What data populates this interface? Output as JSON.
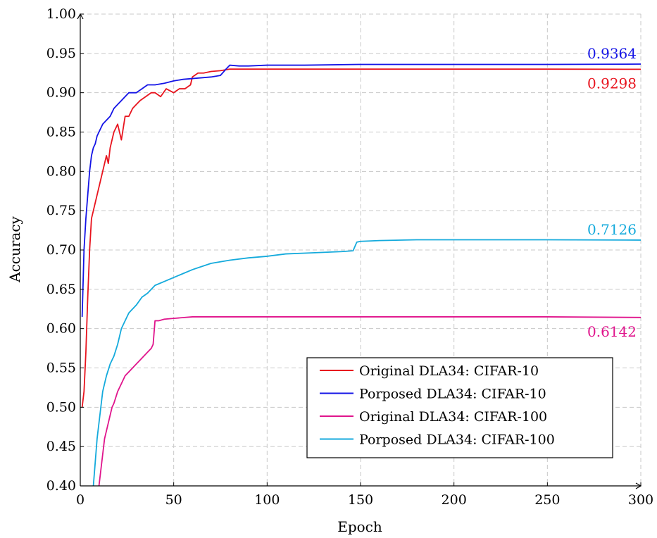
{
  "chart_data": {
    "type": "line",
    "title": "",
    "xlabel": "Epoch",
    "ylabel": "Accuracy",
    "xlim": [
      0,
      300
    ],
    "ylim": [
      0.4,
      1.0
    ],
    "x_ticks": [
      0,
      50,
      100,
      150,
      200,
      250,
      300
    ],
    "y_ticks": [
      0.4,
      0.45,
      0.5,
      0.55,
      0.6,
      0.65,
      0.7,
      0.75,
      0.8,
      0.85,
      0.9,
      0.95,
      1.0
    ],
    "x_tick_labels": [
      "0",
      "50",
      "100",
      "150",
      "200",
      "250",
      "300"
    ],
    "y_tick_labels": [
      "0.40",
      "0.45",
      "0.50",
      "0.55",
      "0.60",
      "0.65",
      "0.70",
      "0.75",
      "0.80",
      "0.85",
      "0.90",
      "0.95",
      "1.00"
    ],
    "grid": true,
    "legend_position": "bottom-right",
    "series": [
      {
        "name": "Original DLA34: CIFAR-10",
        "color": "#e8141e",
        "x": [
          1,
          2,
          3,
          4,
          5,
          6,
          7,
          8,
          9,
          10,
          11,
          12,
          13,
          14,
          15,
          16,
          18,
          20,
          22,
          24,
          26,
          28,
          30,
          32,
          35,
          38,
          40,
          43,
          46,
          50,
          53,
          56,
          59,
          60,
          63,
          66,
          70,
          75,
          80,
          90,
          100,
          120,
          150,
          200,
          250,
          300
        ],
        "y": [
          0.5,
          0.52,
          0.57,
          0.64,
          0.7,
          0.74,
          0.75,
          0.76,
          0.77,
          0.78,
          0.79,
          0.8,
          0.81,
          0.82,
          0.81,
          0.83,
          0.85,
          0.86,
          0.84,
          0.87,
          0.87,
          0.88,
          0.885,
          0.89,
          0.895,
          0.9,
          0.9,
          0.895,
          0.905,
          0.9,
          0.905,
          0.905,
          0.91,
          0.92,
          0.925,
          0.925,
          0.927,
          0.928,
          0.93,
          0.93,
          0.93,
          0.93,
          0.93,
          0.93,
          0.93,
          0.9298
        ]
      },
      {
        "name": "Porposed DLA34: CIFAR-10",
        "color": "#1414e6",
        "x": [
          1,
          2,
          3,
          4,
          5,
          6,
          7,
          8,
          9,
          10,
          12,
          14,
          16,
          18,
          20,
          22,
          24,
          26,
          28,
          30,
          33,
          36,
          40,
          45,
          50,
          55,
          60,
          65,
          70,
          75,
          78,
          80,
          85,
          90,
          100,
          120,
          150,
          200,
          250,
          300
        ],
        "y": [
          0.615,
          0.7,
          0.74,
          0.77,
          0.8,
          0.82,
          0.83,
          0.835,
          0.845,
          0.85,
          0.86,
          0.865,
          0.87,
          0.88,
          0.885,
          0.89,
          0.895,
          0.9,
          0.9,
          0.9,
          0.905,
          0.91,
          0.91,
          0.912,
          0.915,
          0.917,
          0.918,
          0.919,
          0.92,
          0.922,
          0.93,
          0.935,
          0.934,
          0.934,
          0.935,
          0.935,
          0.936,
          0.936,
          0.936,
          0.9364
        ]
      },
      {
        "name": "Original DLA34: CIFAR-100",
        "color": "#e0148c",
        "x": [
          10,
          11,
          12,
          13,
          14,
          15,
          16,
          17,
          18,
          20,
          22,
          24,
          26,
          28,
          30,
          32,
          34,
          36,
          38,
          39,
          40,
          42,
          45,
          50,
          55,
          60,
          70,
          80,
          100,
          150,
          200,
          250,
          300
        ],
        "y": [
          0.4,
          0.42,
          0.44,
          0.46,
          0.47,
          0.48,
          0.49,
          0.5,
          0.505,
          0.52,
          0.53,
          0.54,
          0.545,
          0.55,
          0.555,
          0.56,
          0.565,
          0.57,
          0.575,
          0.58,
          0.61,
          0.61,
          0.612,
          0.613,
          0.614,
          0.615,
          0.615,
          0.615,
          0.615,
          0.615,
          0.615,
          0.615,
          0.6142
        ]
      },
      {
        "name": "Porposed DLA34: CIFAR-100",
        "color": "#14aadc",
        "x": [
          7,
          8,
          9,
          10,
          11,
          12,
          13,
          14,
          16,
          18,
          20,
          22,
          24,
          26,
          28,
          30,
          33,
          36,
          40,
          45,
          50,
          55,
          60,
          70,
          80,
          90,
          100,
          110,
          120,
          130,
          140,
          146,
          148,
          150,
          160,
          180,
          200,
          250,
          300
        ],
        "y": [
          0.4,
          0.43,
          0.46,
          0.48,
          0.5,
          0.52,
          0.53,
          0.54,
          0.555,
          0.565,
          0.58,
          0.6,
          0.61,
          0.62,
          0.625,
          0.63,
          0.64,
          0.645,
          0.655,
          0.66,
          0.665,
          0.67,
          0.675,
          0.683,
          0.687,
          0.69,
          0.692,
          0.695,
          0.696,
          0.697,
          0.698,
          0.699,
          0.71,
          0.711,
          0.712,
          0.713,
          0.713,
          0.713,
          0.7126
        ]
      }
    ],
    "annotations": [
      {
        "text": "0.9364",
        "x": 300,
        "y": 0.9364,
        "color": "#1414e6",
        "placement": "above"
      },
      {
        "text": "0.9298",
        "x": 300,
        "y": 0.9298,
        "color": "#e8141e",
        "placement": "below"
      },
      {
        "text": "0.7126",
        "x": 300,
        "y": 0.7126,
        "color": "#14aadc",
        "placement": "above"
      },
      {
        "text": "0.6142",
        "x": 300,
        "y": 0.6142,
        "color": "#e0148c",
        "placement": "below"
      }
    ]
  }
}
